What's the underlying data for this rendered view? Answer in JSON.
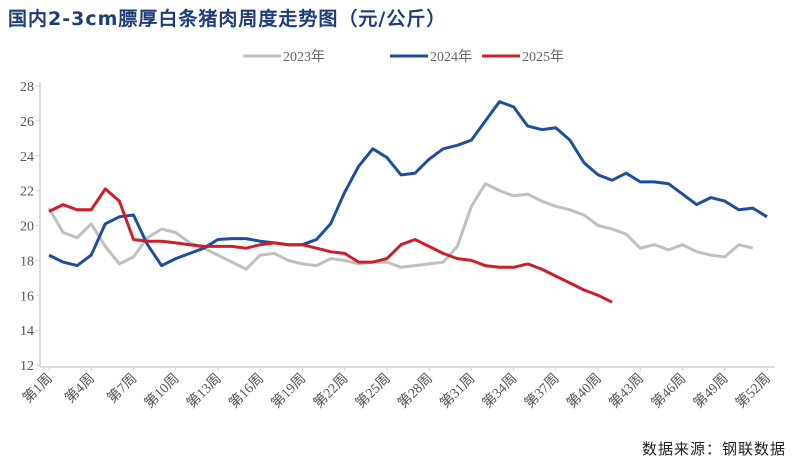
{
  "title": "国内2-3cm膘厚白条猪肉周度走势图（元/公斤）",
  "source": "数据来源：钢联数据",
  "chart_data": {
    "type": "line",
    "title": "国内2-3cm膘厚白条猪肉周度走势图（元/公斤）",
    "xlabel": "",
    "ylabel": "",
    "ylim": [
      12,
      28
    ],
    "yticks": [
      "12",
      "14",
      "16",
      "18",
      "20",
      "22",
      "24",
      "26",
      "28"
    ],
    "xticks": [
      "第1周",
      "第4周",
      "第7周",
      "第10周",
      "第13周",
      "第16周",
      "第19周",
      "第22周",
      "第25周",
      "第28周",
      "第31周",
      "第34周",
      "第37周",
      "第40周",
      "第43周",
      "第46周",
      "第49周",
      "第52周"
    ],
    "legend_position": "top-right",
    "series": [
      {
        "name": "2023年",
        "color": "#c0c0c0",
        "values": [
          21.0,
          19.6,
          19.3,
          20.1,
          18.8,
          17.8,
          18.2,
          19.3,
          19.8,
          19.6,
          19.0,
          18.7,
          18.3,
          17.9,
          17.5,
          18.3,
          18.4,
          18.0,
          17.8,
          17.7,
          18.1,
          18.0,
          17.8,
          17.9,
          17.9,
          17.6,
          17.7,
          17.8,
          17.9,
          18.8,
          21.1,
          22.4,
          22.0,
          21.7,
          21.8,
          21.4,
          21.1,
          20.9,
          20.6,
          20.0,
          19.8,
          19.5,
          18.7,
          18.9,
          18.6,
          18.9,
          18.5,
          18.3,
          18.2,
          18.9,
          18.7
        ]
      },
      {
        "name": "2024年",
        "color": "#1f4e9c",
        "values": [
          18.3,
          17.9,
          17.7,
          18.3,
          20.1,
          20.5,
          20.6,
          18.9,
          17.7,
          18.1,
          18.4,
          18.7,
          19.2,
          19.25,
          19.25,
          19.1,
          19.0,
          18.9,
          18.9,
          19.2,
          20.1,
          21.9,
          23.4,
          24.4,
          23.9,
          22.9,
          23.0,
          23.8,
          24.4,
          24.6,
          24.9,
          26.0,
          27.1,
          26.8,
          25.7,
          25.5,
          25.6,
          24.9,
          23.6,
          22.9,
          22.6,
          23.0,
          22.5,
          22.5,
          22.4,
          21.8,
          21.2,
          21.6,
          21.4,
          20.9,
          21.0,
          20.5
        ]
      },
      {
        "name": "2025年",
        "color": "#cc1f2a",
        "values": [
          20.8,
          21.2,
          20.9,
          20.9,
          22.1,
          21.4,
          19.2,
          19.1,
          19.1,
          19.0,
          18.9,
          18.8,
          18.8,
          18.8,
          18.7,
          18.9,
          19.0,
          18.9,
          18.9,
          18.7,
          18.5,
          18.4,
          17.9,
          17.9,
          18.1,
          18.9,
          19.2,
          18.8,
          18.4,
          18.1,
          18.0,
          17.7,
          17.6,
          17.6,
          17.8,
          17.5,
          17.1,
          16.7,
          16.3,
          16.0,
          15.6
        ]
      }
    ]
  }
}
